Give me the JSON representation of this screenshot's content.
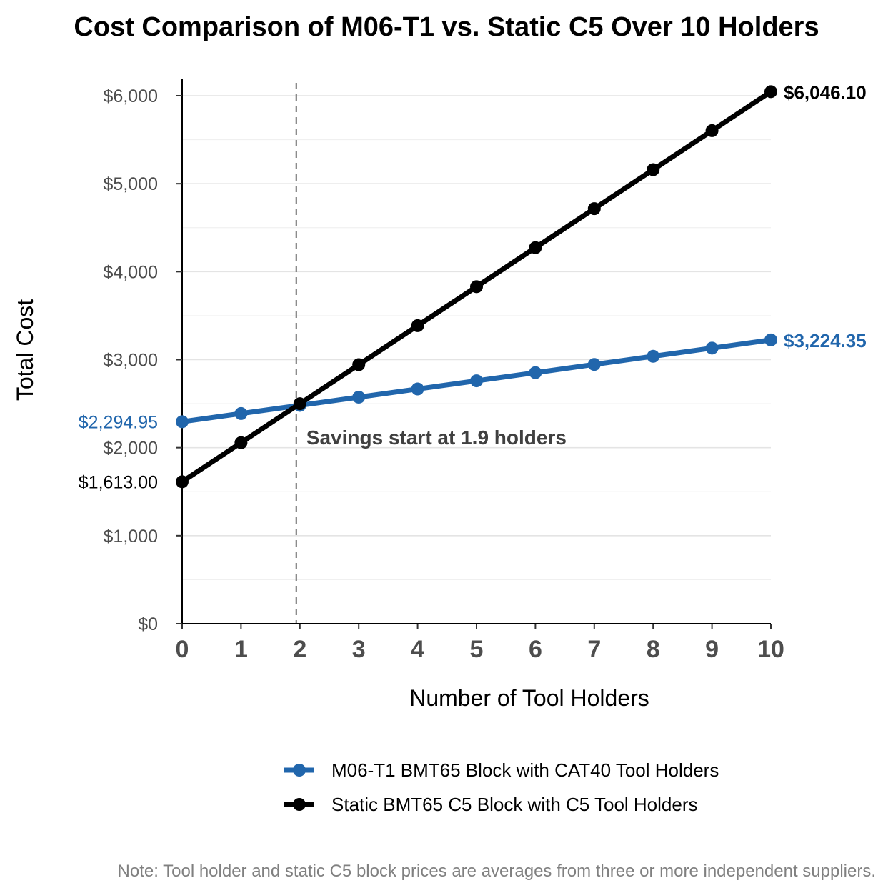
{
  "chart_data": {
    "type": "line",
    "title": "Cost Comparison of M06-T1 vs. Static C5 Over 10 Holders",
    "xlabel": "Number of Tool Holders",
    "ylabel": "Total Cost",
    "x": [
      0,
      1,
      2,
      3,
      4,
      5,
      6,
      7,
      8,
      9,
      10
    ],
    "xlim": [
      0,
      10
    ],
    "ylim": [
      0,
      6200
    ],
    "y_ticks": [
      0,
      1000,
      2000,
      3000,
      4000,
      5000,
      6000
    ],
    "y_tick_labels": [
      "$0",
      "$1,000",
      "$2,000",
      "$3,000",
      "$4,000",
      "$5,000",
      "$6,000"
    ],
    "x_tick_labels": [
      "0",
      "1",
      "2",
      "3",
      "4",
      "5",
      "6",
      "7",
      "8",
      "9",
      "10"
    ],
    "grid": true,
    "legend_position": "bottom",
    "series": [
      {
        "name": "M06-T1 BMT65 Block with CAT40 Tool Holders",
        "color": "#2166ac",
        "values": [
          2294.95,
          2387.89,
          2480.83,
          2573.77,
          2666.71,
          2759.65,
          2852.59,
          2945.53,
          3038.47,
          3131.41,
          3224.35
        ],
        "start_label": "$2,294.95",
        "end_label": "$3,224.35"
      },
      {
        "name": "Static BMT65 C5 Block with C5 Tool Holders",
        "color": "#000000",
        "values": [
          1613.0,
          2056.31,
          2499.62,
          2942.93,
          3386.24,
          3829.55,
          4272.86,
          4716.17,
          5159.48,
          5602.79,
          6046.1
        ],
        "start_label": "$1,613.00",
        "end_label": "$6,046.10"
      }
    ],
    "breakeven": {
      "x": 1.9,
      "annotation": "Savings start at 1.9 holders"
    }
  },
  "note": "Note: Tool holder and static C5 block prices are averages from three or more independent suppliers."
}
